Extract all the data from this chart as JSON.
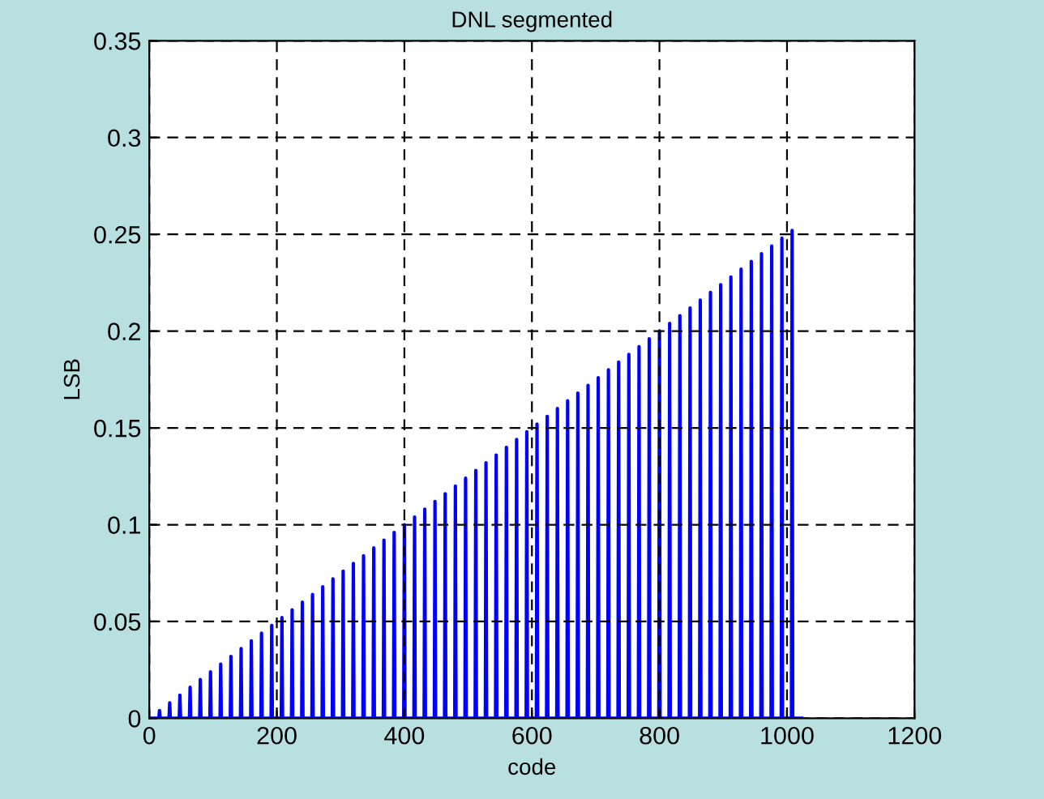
{
  "chart_data": {
    "type": "line",
    "title": "DNL segmented",
    "xlabel": "code",
    "ylabel": "LSB",
    "x": [
      0,
      15,
      16,
      17,
      31,
      32,
      33,
      47,
      48,
      49,
      63,
      64,
      65,
      79,
      80,
      81,
      95,
      96,
      97,
      111,
      112,
      113,
      127,
      128,
      129,
      143,
      144,
      145,
      159,
      160,
      161,
      175,
      176,
      177,
      191,
      192,
      193,
      207,
      208,
      209,
      223,
      224,
      225,
      239,
      240,
      241,
      255,
      256,
      257,
      271,
      272,
      273,
      287,
      288,
      289,
      303,
      304,
      305,
      319,
      320,
      321,
      335,
      336,
      337,
      351,
      352,
      353,
      367,
      368,
      369,
      383,
      384,
      385,
      399,
      400,
      401,
      415,
      416,
      417,
      431,
      432,
      433,
      447,
      448,
      449,
      463,
      464,
      465,
      479,
      480,
      481,
      495,
      496,
      497,
      511,
      512,
      513,
      527,
      528,
      529,
      543,
      544,
      545,
      559,
      560,
      561,
      575,
      576,
      577,
      591,
      592,
      593,
      607,
      608,
      609,
      623,
      624,
      625,
      639,
      640,
      641,
      655,
      656,
      657,
      671,
      672,
      673,
      687,
      688,
      689,
      703,
      704,
      705,
      719,
      720,
      721,
      735,
      736,
      737,
      751,
      752,
      753,
      767,
      768,
      769,
      783,
      784,
      785,
      799,
      800,
      801,
      815,
      816,
      817,
      831,
      832,
      833,
      847,
      848,
      849,
      863,
      864,
      865,
      879,
      880,
      881,
      895,
      896,
      897,
      911,
      912,
      913,
      927,
      928,
      929,
      943,
      944,
      945,
      959,
      960,
      961,
      975,
      976,
      977,
      991,
      992,
      993,
      1007,
      1008,
      1009,
      1023
    ],
    "series": [
      {
        "color": "#0000ff",
        "values": [
          0,
          0,
          0.004,
          0,
          0,
          0.008,
          0,
          0,
          0.012,
          0,
          0,
          0.016,
          0,
          0,
          0.02,
          0,
          0,
          0.024,
          0,
          0,
          0.028,
          0,
          0,
          0.032,
          0,
          0,
          0.036,
          0,
          0,
          0.04,
          0,
          0,
          0.044,
          0,
          0,
          0.048,
          0,
          0,
          0.052,
          0,
          0,
          0.056,
          0,
          0,
          0.06,
          0,
          0,
          0.064,
          0,
          0,
          0.068,
          0,
          0,
          0.072,
          0,
          0,
          0.076,
          0,
          0,
          0.08,
          0,
          0,
          0.084,
          0,
          0,
          0.088,
          0,
          0,
          0.092,
          0,
          0,
          0.096,
          0,
          0,
          0.1,
          0,
          0,
          0.104,
          0,
          0,
          0.108,
          0,
          0,
          0.112,
          0,
          0,
          0.116,
          0,
          0,
          0.12,
          0,
          0,
          0.124,
          0,
          0,
          0.128,
          0,
          0,
          0.132,
          0,
          0,
          0.136,
          0,
          0,
          0.14,
          0,
          0,
          0.144,
          0,
          0,
          0.148,
          0,
          0,
          0.152,
          0,
          0,
          0.156,
          0,
          0,
          0.16,
          0,
          0,
          0.164,
          0,
          0,
          0.168,
          0,
          0,
          0.172,
          0,
          0,
          0.176,
          0,
          0,
          0.18,
          0,
          0,
          0.184,
          0,
          0,
          0.188,
          0,
          0,
          0.192,
          0,
          0,
          0.196,
          0,
          0,
          0.2,
          0,
          0,
          0.204,
          0,
          0,
          0.208,
          0,
          0,
          0.212,
          0,
          0,
          0.216,
          0,
          0,
          0.22,
          0,
          0,
          0.224,
          0,
          0,
          0.228,
          0,
          0,
          0.232,
          0,
          0,
          0.236,
          0,
          0,
          0.24,
          0,
          0,
          0.244,
          0,
          0,
          0.248,
          0,
          0,
          0.252,
          0,
          0
        ]
      }
    ],
    "xlim": [
      0,
      1200
    ],
    "xticks": [
      0,
      200,
      400,
      600,
      800,
      1000,
      1200
    ],
    "ylim": [
      0,
      0.35
    ],
    "yticks": [
      0,
      0.05,
      0.1,
      0.15,
      0.2,
      0.25,
      0.3,
      0.35
    ],
    "grid": true,
    "line_style": "solid"
  }
}
